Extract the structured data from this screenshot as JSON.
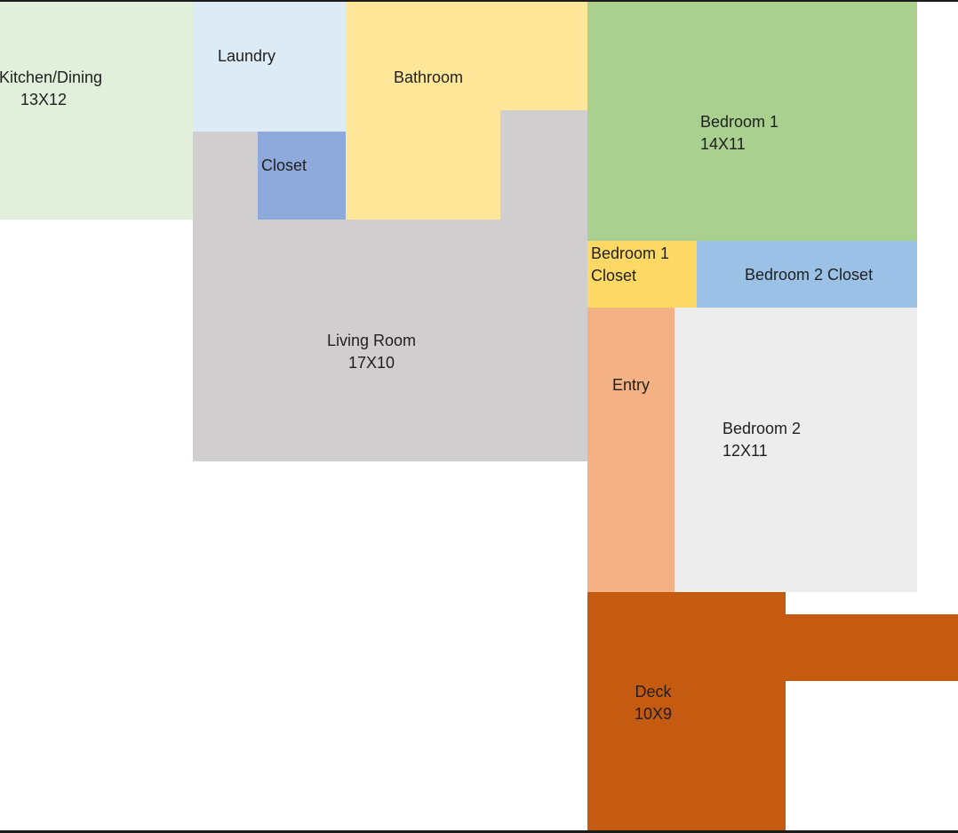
{
  "colors": {
    "kitchen": "#e2efda",
    "laundry": "#ddebf7",
    "bathroom": "#ffe699",
    "closet": "#8ea9db",
    "living": "#d0cece",
    "bedroom1": "#a9d08e",
    "bedroom1_closet": "#ffd966",
    "bedroom2_closet": "#9bc2e6",
    "entry": "#f4b183",
    "bedroom2": "#ededed",
    "deck": "#c55a11"
  },
  "rooms": {
    "kitchen": {
      "name": "Kitchen/Dining",
      "size": "13X12"
    },
    "laundry": {
      "name": "Laundry"
    },
    "bathroom": {
      "name": "Bathroom"
    },
    "closet": {
      "name": "Closet"
    },
    "living": {
      "name": "Living Room",
      "size": "17X10"
    },
    "bedroom1": {
      "name": "Bedroom 1",
      "size": "14X11"
    },
    "bedroom1_closet": {
      "name_line1": "Bedroom 1",
      "name_line2": "Closet"
    },
    "bedroom2_closet": {
      "name": "Bedroom 2 Closet"
    },
    "entry": {
      "name": "Entry"
    },
    "bedroom2": {
      "name": "Bedroom 2",
      "size": "12X11"
    },
    "deck": {
      "name": "Deck",
      "size": "10X9"
    }
  }
}
